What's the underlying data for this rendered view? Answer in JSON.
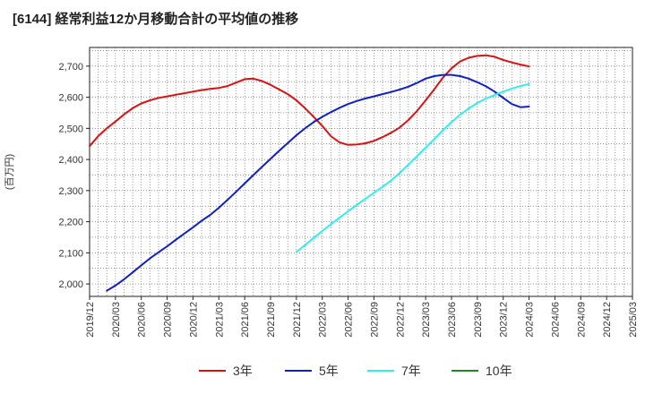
{
  "chart_data": {
    "type": "line",
    "title": "[6144]  経常利益12か月移動合計の平均値の推移",
    "xlabel": "",
    "ylabel": "(百万円)",
    "ylim": [
      1960,
      2760
    ],
    "yticks": [
      2000,
      2100,
      2200,
      2300,
      2400,
      2500,
      2600,
      2700
    ],
    "ytick_labels": [
      "2,000",
      "2,100",
      "2,200",
      "2,300",
      "2,400",
      "2,500",
      "2,600",
      "2,700"
    ],
    "x_tick_labels": [
      "2019/12",
      "2020/03",
      "2020/06",
      "2020/09",
      "2020/12",
      "2021/03",
      "2021/06",
      "2021/09",
      "2021/12",
      "2022/03",
      "2022/06",
      "2022/09",
      "2022/12",
      "2023/03",
      "2023/06",
      "2023/09",
      "2023/12",
      "2024/03",
      "2024/06",
      "2024/09",
      "2024/12",
      "2025/03"
    ],
    "legend_position": "bottom",
    "grid": true,
    "series": [
      {
        "name": "3年",
        "color": "#dd1111",
        "points": [
          [
            0,
            2443
          ],
          [
            1,
            2475
          ],
          [
            2,
            2500
          ],
          [
            3,
            2522
          ],
          [
            4,
            2545
          ],
          [
            5,
            2565
          ],
          [
            6,
            2580
          ],
          [
            7,
            2590
          ],
          [
            8,
            2598
          ],
          [
            9,
            2603
          ],
          [
            10,
            2608
          ],
          [
            11,
            2613
          ],
          [
            12,
            2618
          ],
          [
            13,
            2623
          ],
          [
            14,
            2627
          ],
          [
            15,
            2630
          ],
          [
            16,
            2636
          ],
          [
            17,
            2647
          ],
          [
            18,
            2658
          ],
          [
            19,
            2660
          ],
          [
            20,
            2652
          ],
          [
            21,
            2640
          ],
          [
            22,
            2625
          ],
          [
            23,
            2610
          ],
          [
            24,
            2590
          ],
          [
            25,
            2565
          ],
          [
            26,
            2537
          ],
          [
            27,
            2508
          ],
          [
            28,
            2475
          ],
          [
            29,
            2455
          ],
          [
            30,
            2447
          ],
          [
            31,
            2448
          ],
          [
            32,
            2452
          ],
          [
            33,
            2460
          ],
          [
            34,
            2472
          ],
          [
            35,
            2486
          ],
          [
            36,
            2503
          ],
          [
            37,
            2527
          ],
          [
            38,
            2556
          ],
          [
            39,
            2590
          ],
          [
            40,
            2626
          ],
          [
            41,
            2663
          ],
          [
            42,
            2693
          ],
          [
            43,
            2715
          ],
          [
            44,
            2727
          ],
          [
            45,
            2733
          ],
          [
            46,
            2735
          ],
          [
            47,
            2730
          ],
          [
            48,
            2720
          ],
          [
            49,
            2712
          ],
          [
            50,
            2705
          ],
          [
            51,
            2699
          ]
        ]
      },
      {
        "name": "5年",
        "color": "#1020c8",
        "points": [
          [
            2,
            1978
          ],
          [
            3,
            1995
          ],
          [
            4,
            2015
          ],
          [
            5,
            2037
          ],
          [
            6,
            2060
          ],
          [
            7,
            2082
          ],
          [
            8,
            2102
          ],
          [
            9,
            2121
          ],
          [
            10,
            2142
          ],
          [
            11,
            2162
          ],
          [
            12,
            2182
          ],
          [
            13,
            2203
          ],
          [
            14,
            2222
          ],
          [
            15,
            2245
          ],
          [
            16,
            2270
          ],
          [
            17,
            2296
          ],
          [
            18,
            2323
          ],
          [
            19,
            2350
          ],
          [
            20,
            2376
          ],
          [
            21,
            2402
          ],
          [
            22,
            2428
          ],
          [
            23,
            2453
          ],
          [
            24,
            2478
          ],
          [
            25,
            2500
          ],
          [
            26,
            2520
          ],
          [
            27,
            2537
          ],
          [
            28,
            2552
          ],
          [
            29,
            2566
          ],
          [
            30,
            2578
          ],
          [
            31,
            2588
          ],
          [
            32,
            2596
          ],
          [
            33,
            2603
          ],
          [
            34,
            2610
          ],
          [
            35,
            2617
          ],
          [
            36,
            2625
          ],
          [
            37,
            2634
          ],
          [
            38,
            2646
          ],
          [
            39,
            2660
          ],
          [
            40,
            2668
          ],
          [
            41,
            2672
          ],
          [
            42,
            2672
          ],
          [
            43,
            2668
          ],
          [
            44,
            2660
          ],
          [
            45,
            2648
          ],
          [
            46,
            2635
          ],
          [
            47,
            2618
          ],
          [
            48,
            2598
          ],
          [
            49,
            2578
          ],
          [
            50,
            2568
          ],
          [
            51,
            2570
          ]
        ]
      },
      {
        "name": "7年",
        "color": "#33eeee",
        "points": [
          [
            24,
            2103
          ],
          [
            25,
            2125
          ],
          [
            26,
            2148
          ],
          [
            27,
            2170
          ],
          [
            28,
            2192
          ],
          [
            29,
            2213
          ],
          [
            30,
            2234
          ],
          [
            31,
            2254
          ],
          [
            32,
            2274
          ],
          [
            33,
            2293
          ],
          [
            34,
            2312
          ],
          [
            35,
            2333
          ],
          [
            36,
            2357
          ],
          [
            37,
            2384
          ],
          [
            38,
            2411
          ],
          [
            39,
            2438
          ],
          [
            40,
            2466
          ],
          [
            41,
            2494
          ],
          [
            42,
            2520
          ],
          [
            43,
            2544
          ],
          [
            44,
            2564
          ],
          [
            45,
            2582
          ],
          [
            46,
            2596
          ],
          [
            47,
            2607
          ],
          [
            48,
            2618
          ],
          [
            49,
            2628
          ],
          [
            50,
            2636
          ],
          [
            51,
            2643
          ]
        ]
      },
      {
        "name": "10年",
        "color": "#228822",
        "points": []
      }
    ]
  }
}
